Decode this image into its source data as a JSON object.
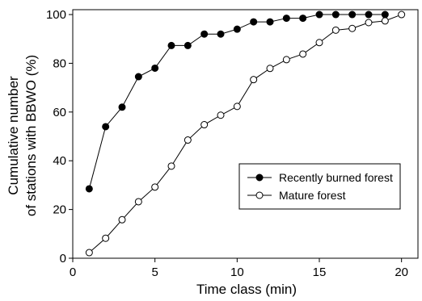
{
  "chart_data": {
    "type": "line",
    "xlabel": "Time class (min)",
    "ylabel_lines": [
      "Cumulative number",
      "of stations with BBWO (%)"
    ],
    "xlim": [
      0,
      21
    ],
    "ylim": [
      0,
      102
    ],
    "xticks": [
      0,
      5,
      10,
      15,
      20
    ],
    "yticks": [
      0,
      20,
      40,
      60,
      80,
      100
    ],
    "grid": false,
    "legend_position": "center-right",
    "series": [
      {
        "name": "Recently burned forest",
        "marker": "filled-circle",
        "x": [
          1,
          2,
          3,
          4,
          5,
          6,
          7,
          8,
          9,
          10,
          11,
          12,
          13,
          14,
          15,
          16,
          17,
          18,
          19
        ],
        "values": [
          28.5,
          54,
          62,
          74.5,
          78,
          87.3,
          87.3,
          92,
          92,
          94,
          97,
          97,
          98.5,
          98.5,
          100,
          100,
          100,
          100,
          100
        ]
      },
      {
        "name": "Mature forest",
        "marker": "open-circle",
        "x": [
          1,
          2,
          3,
          4,
          5,
          6,
          7,
          8,
          9,
          10,
          11,
          12,
          13,
          14,
          15,
          16,
          17,
          18,
          19,
          20
        ],
        "values": [
          2.3,
          8.2,
          15.8,
          23.2,
          29.2,
          37.8,
          48.5,
          54.8,
          58.7,
          62.3,
          73.3,
          77.9,
          81.5,
          83.8,
          88.5,
          93.6,
          94.3,
          96.7,
          97.4,
          100
        ]
      }
    ]
  }
}
